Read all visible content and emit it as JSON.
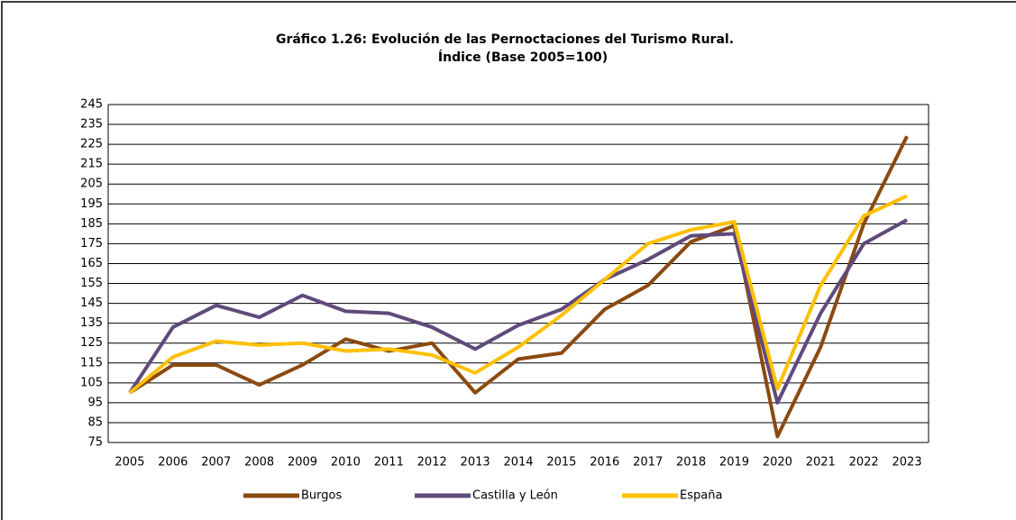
{
  "chart_data": {
    "type": "line",
    "title": "Gráfico 1.26: Evolución de las Pernoctaciones del Turismo Rural.",
    "subtitle": "Índice (Base 2005=100)",
    "categories": [
      "2005",
      "2006",
      "2007",
      "2008",
      "2009",
      "2010",
      "2011",
      "2012",
      "2013",
      "2014",
      "2015",
      "2016",
      "2017",
      "2018",
      "2019",
      "2020",
      "2021",
      "2022",
      "2023"
    ],
    "series": [
      {
        "name": "Burgos",
        "color": "#8b4a0f",
        "values": [
          100,
          114,
          114,
          104,
          114,
          127,
          121,
          125,
          100,
          117,
          120,
          142,
          154,
          176,
          184,
          78,
          123,
          185,
          229
        ]
      },
      {
        "name": "Castilla y León",
        "color": "#604a7b",
        "values": [
          100,
          133,
          144,
          138,
          149,
          141,
          140,
          133,
          122,
          134,
          142,
          157,
          167,
          179,
          180,
          95,
          140,
          175,
          187
        ]
      },
      {
        "name": "España",
        "color": "#ffc000",
        "values": [
          100,
          118,
          126,
          124,
          125,
          121,
          122,
          119,
          110,
          123,
          139,
          157,
          175,
          182,
          186,
          102,
          154,
          189,
          199
        ]
      }
    ],
    "ylim": [
      75,
      245
    ],
    "yticks": [
      75,
      85,
      95,
      105,
      115,
      125,
      135,
      145,
      155,
      165,
      175,
      185,
      195,
      205,
      215,
      225,
      235,
      245
    ],
    "grid": true,
    "legend": "bottom"
  }
}
